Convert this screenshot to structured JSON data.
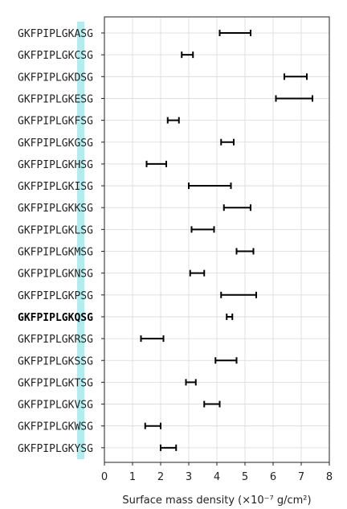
{
  "chart_data": {
    "type": "errorbar",
    "orientation": "horizontal",
    "categories": [
      "GKFPIPLGKASG",
      "GKFPIPLGKCSG",
      "GKFPIPLGKDSG",
      "GKFPIPLGKESG",
      "GKFPIPLGKFSG",
      "GKFPIPLGKGSG",
      "GKFPIPLGKHSG",
      "GKFPIPLGKISG",
      "GKFPIPLGKKSG",
      "GKFPIPLGKLSG",
      "GKFPIPLGKMSG",
      "GKFPIPLGKNSG",
      "GKFPIPLGKPSG",
      "GKFPIPLGKQSG",
      "GKFPIPLGKRSG",
      "GKFPIPLGKSSG",
      "GKFPIPLGKTSG",
      "GKFPIPLGKVSG",
      "GKFPIPLGKWSG",
      "GKFPIPLGKYSG"
    ],
    "intervals": [
      [
        4.1,
        5.2
      ],
      [
        2.75,
        3.15
      ],
      [
        6.4,
        7.2
      ],
      [
        6.1,
        7.4
      ],
      [
        2.25,
        2.65
      ],
      [
        4.15,
        4.6
      ],
      [
        1.5,
        2.2
      ],
      [
        3.0,
        4.5
      ],
      [
        4.25,
        5.2
      ],
      [
        3.1,
        3.9
      ],
      [
        4.7,
        5.3
      ],
      [
        3.05,
        3.55
      ],
      [
        4.15,
        5.4
      ],
      [
        4.35,
        4.55
      ],
      [
        1.3,
        2.1
      ],
      [
        3.95,
        4.7
      ],
      [
        2.9,
        3.25
      ],
      [
        3.55,
        4.1
      ],
      [
        1.45,
        2.0
      ],
      [
        2.0,
        2.55
      ]
    ],
    "highlighted_category": "GKFPIPLGKQSG",
    "highlight_color": "#b3ecee",
    "xlabel": "Surface mass density (×10⁻⁷ g/cm²)",
    "xlim": [
      0,
      8
    ],
    "xticks": [
      "0",
      "1",
      "2",
      "3",
      "4",
      "5",
      "6",
      "7",
      "8"
    ],
    "grid": true
  }
}
